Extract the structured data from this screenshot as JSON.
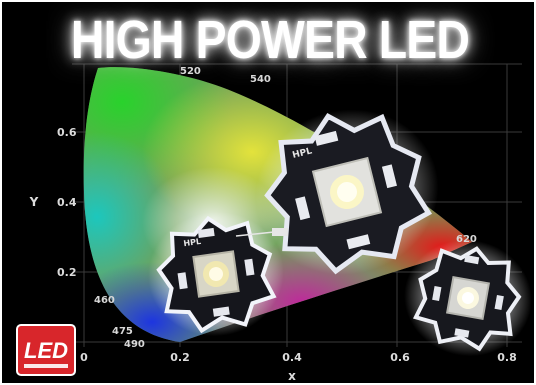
{
  "headline": "HIGH POWER LED",
  "axes": {
    "x_label": "x",
    "y_label": "Y",
    "x_ticks": [
      "0",
      "0.2",
      "0.4",
      "0.6",
      "0.8"
    ],
    "y_ticks": [
      "0.6",
      "0.4",
      "0.2"
    ]
  },
  "wavelength_labels": [
    "460",
    "475",
    "490",
    "520",
    "540",
    "620"
  ],
  "emitter_labels": [
    "HPL",
    "HPL"
  ],
  "logo": {
    "text": "LED",
    "bg_color": "#d8262b"
  },
  "colors": {
    "background": "#000000",
    "text": "#ffffff",
    "grid": "#3a3a3a"
  }
}
